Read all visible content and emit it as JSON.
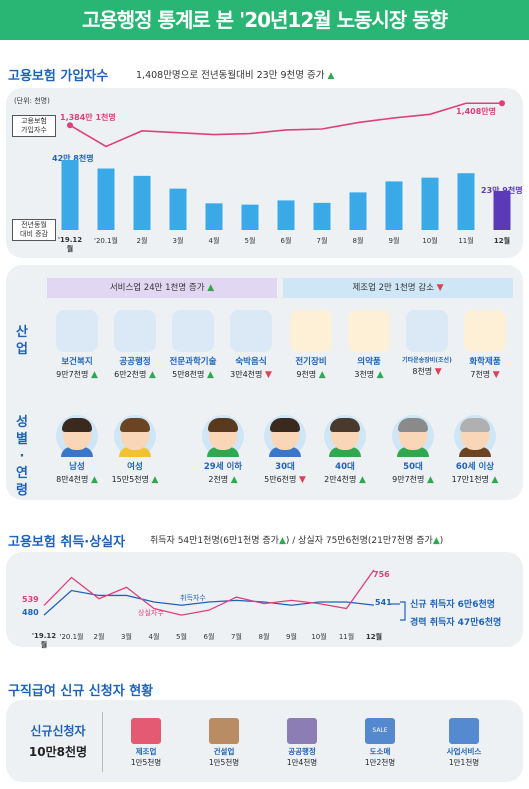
{
  "header": {
    "title": "고용행정 통계로 본 '20년12월 노동시장 동향"
  },
  "insured": {
    "title": "고용보험 가입자수",
    "summary": "1,408만명으로 전년동월대비 23만 9천명 증가",
    "unit": "(단위: 천명)",
    "row_label_top": "고용보험\n가입자수",
    "row_label_bottom": "전년동월\n대비 증감",
    "start_total": "1,384만 1천명",
    "end_total": "1,408만명",
    "start_change": "42만 8천명",
    "end_change": "23만 9천명"
  },
  "chart_data": [
    {
      "type": "bar",
      "title": "고용보험 가입자수",
      "categories": [
        "'19.12월",
        "'20.1월",
        "2월",
        "3월",
        "4월",
        "5월",
        "6월",
        "7월",
        "8월",
        "9월",
        "10월",
        "11월",
        "12월"
      ],
      "series": [
        {
          "name": "전년동월 대비 증감",
          "values": [
            428,
            376,
            331,
            253,
            163,
            155,
            181,
            166,
            230,
            297,
            320,
            347,
            239
          ]
        }
      ],
      "ylim": [
        0,
        500
      ]
    },
    {
      "type": "line",
      "title": "고용보험 가입자수",
      "categories": [
        "'19.12월",
        "'20.1월",
        "2월",
        "3월",
        "4월",
        "5월",
        "6월",
        "7월",
        "8월",
        "9월",
        "10월",
        "11월",
        "12월"
      ],
      "series": [
        {
          "name": "고용보험 가입자수",
          "values": [
            13841,
            13610,
            13780,
            13760,
            13740,
            13750,
            13790,
            13800,
            13870,
            13920,
            13960,
            14080,
            14080
          ]
        }
      ]
    },
    {
      "type": "line",
      "title": "고용보험 취득·상실자",
      "categories": [
        "'19.12월",
        "'20.1월",
        "2월",
        "3월",
        "4월",
        "5월",
        "6월",
        "7월",
        "8월",
        "9월",
        "10월",
        "11월",
        "12월"
      ],
      "series": [
        {
          "name": "취득자수",
          "values": [
            480,
            630,
            600,
            600,
            560,
            540,
            560,
            570,
            560,
            540,
            560,
            560,
            541
          ]
        },
        {
          "name": "상실자수",
          "values": [
            539,
            710,
            580,
            650,
            520,
            480,
            510,
            590,
            550,
            570,
            550,
            520,
            756
          ]
        }
      ]
    }
  ],
  "industry": {
    "label": "산업",
    "service_banner": "서비스업 24만 1천명 증가",
    "manufacturing_banner": "제조업 2만 1천명 감소",
    "items": [
      {
        "name": "보건복지",
        "value": "9만7천명",
        "dir": "up"
      },
      {
        "name": "공공행정",
        "value": "6만2천명",
        "dir": "up"
      },
      {
        "name": "전문과학기술",
        "value": "5만8천명",
        "dir": "up"
      },
      {
        "name": "숙박음식",
        "value": "3만4천명",
        "dir": "down"
      },
      {
        "name": "전기장비",
        "value": "9천명",
        "dir": "up"
      },
      {
        "name": "의약품",
        "value": "3천명",
        "dir": "up"
      },
      {
        "name": "기타운송장비(조선)",
        "value": "8천명",
        "dir": "down"
      },
      {
        "name": "화학제품",
        "value": "7천명",
        "dir": "down"
      }
    ]
  },
  "gender_age": {
    "label": "성별·연령",
    "items": [
      {
        "name": "남성",
        "value": "8만4천명",
        "dir": "up"
      },
      {
        "name": "여성",
        "value": "15만5천명",
        "dir": "up"
      },
      {
        "name": "29세 이하",
        "value": "2천명",
        "dir": "up"
      },
      {
        "name": "30대",
        "value": "5만6천명",
        "dir": "down"
      },
      {
        "name": "40대",
        "value": "2만4천명",
        "dir": "up"
      },
      {
        "name": "50대",
        "value": "9만7천명",
        "dir": "up"
      },
      {
        "name": "60세 이상",
        "value": "17만1천명",
        "dir": "up"
      }
    ]
  },
  "turnover": {
    "title": "고용보험 취득·상실자",
    "summary_a": "취득자 54만1천명(6만1천명 증가",
    "summary_b": ") / 상실자 75만6천명(21만7천명 증가",
    "summary_c": ")",
    "start_loss": "539",
    "start_gain": "480",
    "end_loss": "756",
    "end_gain": "541",
    "gain_line_label": "취득자수",
    "loss_line_label": "상실자수",
    "new_label": "신규 취득자 6만6천명",
    "exp_label": "경력 취득자 47만6천명"
  },
  "benefit": {
    "title": "구직급여 신규 신청자 현황",
    "total_label": "신규신청자",
    "total_value": "10만8천명",
    "items": [
      {
        "name": "제조업",
        "value": "1만5천명"
      },
      {
        "name": "건설업",
        "value": "1만5천명"
      },
      {
        "name": "공공행정",
        "value": "1만4천명"
      },
      {
        "name": "도소매",
        "value": "1만2천명"
      },
      {
        "name": "사업서비스",
        "value": "1만1천명"
      }
    ]
  },
  "icons": {
    "up": "▲",
    "down": "▼",
    "sale": "SALE"
  },
  "colors": {
    "accent": "#29b573",
    "blue": "#1e63b8",
    "pink": "#e0407a",
    "bar": "#3aa9e8",
    "bar_last": "#5b3ab8"
  }
}
